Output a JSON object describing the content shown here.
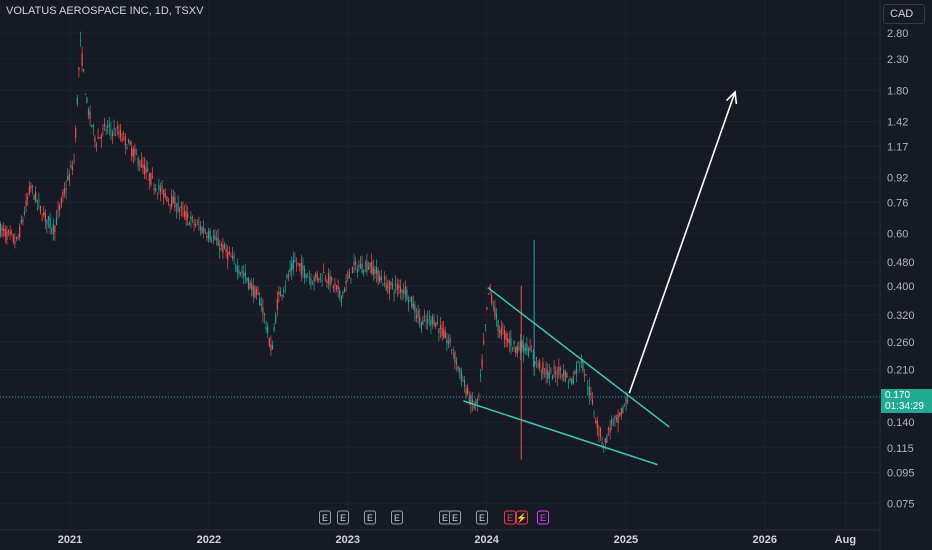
{
  "header": {
    "title": "VOLATUS AEROSPACE INC, 1D, TSXV",
    "currency": "CAD"
  },
  "price_badge": {
    "price": "0.170",
    "countdown": "01:34:29"
  },
  "colors": {
    "background": "#161a25",
    "grid": "#1f2330",
    "up": "#26a69a",
    "down": "#ef5350",
    "trendline": "#3cc9b0",
    "arrow": "#ffffff",
    "earnings_badge": "#9aa0ab",
    "earnings_future": "#e040fb",
    "earnings_recent": "#f23645"
  },
  "events": [
    {
      "label": "E",
      "kind": "past"
    },
    {
      "label": "E",
      "kind": "past"
    },
    {
      "label": "E",
      "kind": "past"
    },
    {
      "label": "E",
      "kind": "past"
    },
    {
      "label": "E",
      "kind": "past"
    },
    {
      "label": "E",
      "kind": "past"
    },
    {
      "label": "E",
      "kind": "past"
    },
    {
      "label": "E",
      "kind": "recent"
    },
    {
      "label": "⚡",
      "kind": "recent"
    },
    {
      "label": "E",
      "kind": "future"
    }
  ],
  "chart_data": {
    "type": "candlestick",
    "title": "VOLATUS AEROSPACE INC, 1D, TSXV",
    "x_axis": {
      "range": [
        "2020-07-01",
        "2026-10-31"
      ],
      "ticks": [
        {
          "label": "2021",
          "date": "2021-01-01"
        },
        {
          "label": "2022",
          "date": "2022-01-01"
        },
        {
          "label": "2023",
          "date": "2023-01-01"
        },
        {
          "label": "2024",
          "date": "2024-01-01"
        },
        {
          "label": "2025",
          "date": "2025-01-01"
        },
        {
          "label": "2026",
          "date": "2026-01-01"
        },
        {
          "label": "Aug",
          "date": "2026-08-01"
        }
      ]
    },
    "y_axis": {
      "scale": "log",
      "range": [
        0.068,
        3.1
      ],
      "ticks": [
        "2.80",
        "2.30",
        "1.80",
        "1.42",
        "1.17",
        "0.92",
        "0.76",
        "0.60",
        "0.480",
        "0.400",
        "0.320",
        "0.260",
        "0.210",
        "0.170",
        "0.140",
        "0.115",
        "0.095",
        "0.075"
      ]
    },
    "last_price": 0.17,
    "price_path": [
      [
        "2020-07-01",
        0.62
      ],
      [
        "2020-08-15",
        0.56
      ],
      [
        "2020-09-20",
        0.86
      ],
      [
        "2020-10-20",
        0.7
      ],
      [
        "2020-11-20",
        0.62
      ],
      [
        "2020-12-20",
        0.85
      ],
      [
        "2021-01-12",
        1.05
      ],
      [
        "2021-01-28",
        2.6
      ],
      [
        "2021-02-15",
        1.6
      ],
      [
        "2021-03-10",
        1.22
      ],
      [
        "2021-04-05",
        1.35
      ],
      [
        "2021-05-10",
        1.3
      ],
      [
        "2021-06-01",
        1.2
      ],
      [
        "2021-07-01",
        1.05
      ],
      [
        "2021-08-15",
        0.86
      ],
      [
        "2021-10-01",
        0.76
      ],
      [
        "2021-11-15",
        0.66
      ],
      [
        "2022-01-01",
        0.6
      ],
      [
        "2022-02-15",
        0.52
      ],
      [
        "2022-04-01",
        0.44
      ],
      [
        "2022-05-20",
        0.35
      ],
      [
        "2022-06-15",
        0.24
      ],
      [
        "2022-07-01",
        0.36
      ],
      [
        "2022-08-15",
        0.48
      ],
      [
        "2022-10-01",
        0.42
      ],
      [
        "2022-11-01",
        0.44
      ],
      [
        "2022-12-15",
        0.37
      ],
      [
        "2023-01-15",
        0.46
      ],
      [
        "2023-03-01",
        0.47
      ],
      [
        "2023-04-15",
        0.4
      ],
      [
        "2023-06-01",
        0.39
      ],
      [
        "2023-07-15",
        0.3
      ],
      [
        "2023-08-15",
        0.31
      ],
      [
        "2023-10-01",
        0.25
      ],
      [
        "2023-11-01",
        0.19
      ],
      [
        "2023-11-25",
        0.16
      ],
      [
        "2023-12-10",
        0.16
      ],
      [
        "2024-01-08",
        0.4
      ],
      [
        "2024-02-01",
        0.29
      ],
      [
        "2024-03-15",
        0.25
      ],
      [
        "2024-04-15",
        0.25
      ],
      [
        "2024-05-15",
        0.22
      ],
      [
        "2024-06-15",
        0.2
      ],
      [
        "2024-07-15",
        0.21
      ],
      [
        "2024-08-10",
        0.19
      ],
      [
        "2024-09-05",
        0.23
      ],
      [
        "2024-10-01",
        0.17
      ],
      [
        "2024-10-20",
        0.135
      ],
      [
        "2024-11-05",
        0.117
      ],
      [
        "2024-11-25",
        0.14
      ],
      [
        "2024-12-10",
        0.14
      ],
      [
        "2025-01-08",
        0.17
      ]
    ],
    "wicks": [
      {
        "date": "2024-04-01",
        "high": 0.4,
        "low": 0.105
      },
      {
        "date": "2024-05-05",
        "high": 0.57,
        "low": 0.2
      }
    ],
    "trendlines": [
      {
        "name": "upper",
        "from": [
          "2024-01-04",
          0.395
        ],
        "to": [
          "2025-04-25",
          0.135
        ]
      },
      {
        "name": "lower",
        "from": [
          "2023-11-01",
          0.165
        ],
        "to": [
          "2025-03-25",
          0.101
        ]
      }
    ],
    "projection_arrow": {
      "from": [
        "2025-01-10",
        0.175
      ],
      "to": [
        "2025-10-15",
        1.78
      ]
    },
    "grid": true
  }
}
